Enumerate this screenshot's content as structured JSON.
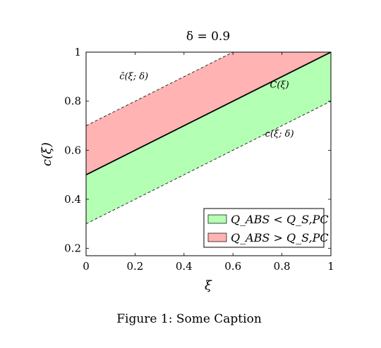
{
  "chart_data": {
    "type": "area",
    "title": "δ = 0.9",
    "xlabel": "ξ",
    "ylabel": "c(ξ)",
    "xlim": [
      0,
      1
    ],
    "ylim": [
      0.17,
      1
    ],
    "xticks": [
      0,
      0.2,
      0.4,
      0.6,
      0.8,
      1
    ],
    "xtick_labels": [
      "0",
      "0.2",
      "0.4",
      "0.6",
      "0.8",
      "1"
    ],
    "yticks": [
      0.2,
      0.4,
      0.6,
      0.8,
      1
    ],
    "ytick_labels": [
      "0.2",
      "0.4",
      "0.6",
      "0.8",
      "1"
    ],
    "grid": false,
    "legend_position": "bottom-right",
    "series": [
      {
        "name": "C(ξ)",
        "x": [
          0,
          1
        ],
        "y": [
          0.5,
          1.0
        ],
        "style": "solid",
        "color": "#000000"
      },
      {
        "name": "c̄(ξ; δ)",
        "x": [
          0,
          1
        ],
        "y": [
          0.7,
          1.2
        ],
        "style": "dashed",
        "color": "#000000"
      },
      {
        "name": "c(ξ; δ)",
        "x": [
          0,
          1
        ],
        "y": [
          0.3,
          0.8
        ],
        "style": "dashed",
        "color": "#000000"
      }
    ],
    "regions": [
      {
        "name": "Q_ABS > Q_S,PC",
        "between": [
          "C(ξ)",
          "c̄(ξ; δ)"
        ],
        "color": "#ffb3b3"
      },
      {
        "name": "Q_ABS < Q_S,PC",
        "between": [
          "c(ξ; δ)",
          "C(ξ)"
        ],
        "color": "#b3ffb3"
      }
    ],
    "annotations": [
      {
        "text": "c̄(ξ; δ)",
        "x": 0.195,
        "y": 0.89
      },
      {
        "text": "C(ξ)",
        "x": 0.79,
        "y": 0.855
      },
      {
        "text": "c(ξ; δ)",
        "x": 0.79,
        "y": 0.655
      }
    ],
    "legend": [
      {
        "label": "Q_ABS < Q_S,PC",
        "color": "#b3ffb3"
      },
      {
        "label": "Q_ABS > Q_S,PC",
        "color": "#ffb3b3"
      }
    ]
  },
  "caption": "Figure 1: Some Caption"
}
